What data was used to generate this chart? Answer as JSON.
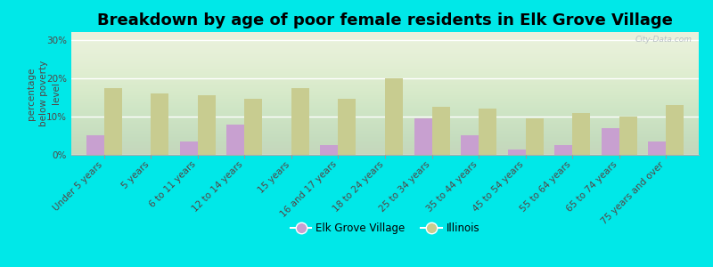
{
  "title": "Breakdown by age of poor female residents in Elk Grove Village",
  "ylabel": "percentage\nbelow poverty\nlevel",
  "categories": [
    "Under 5 years",
    "5 years",
    "6 to 11 years",
    "12 to 14 years",
    "15 years",
    "16 and 17 years",
    "18 to 24 years",
    "25 to 34 years",
    "35 to 44 years",
    "45 to 54 years",
    "55 to 64 years",
    "65 to 74 years",
    "75 years and over"
  ],
  "egv_values": [
    5.0,
    0.0,
    3.5,
    8.0,
    0.0,
    2.5,
    0.0,
    9.5,
    5.0,
    1.5,
    2.5,
    7.0,
    3.5
  ],
  "il_values": [
    17.5,
    16.0,
    15.5,
    14.5,
    17.5,
    14.5,
    20.0,
    12.5,
    12.0,
    9.5,
    11.0,
    10.0,
    13.0
  ],
  "egv_color": "#c8a0d0",
  "il_color": "#c8cc90",
  "background_color": "#00e8e8",
  "plot_bg_top": "#f5f8ee",
  "plot_bg_bottom": "#e8f0d8",
  "ylim": [
    0,
    32
  ],
  "yticks": [
    0,
    10,
    20,
    30
  ],
  "ytick_labels": [
    "0%",
    "10%",
    "20%",
    "30%"
  ],
  "legend_egv": "Elk Grove Village",
  "legend_il": "Illinois",
  "title_fontsize": 13,
  "ylabel_fontsize": 7.5,
  "tick_fontsize": 7.5,
  "label_color": "#554444",
  "watermark": "City-Data.com"
}
